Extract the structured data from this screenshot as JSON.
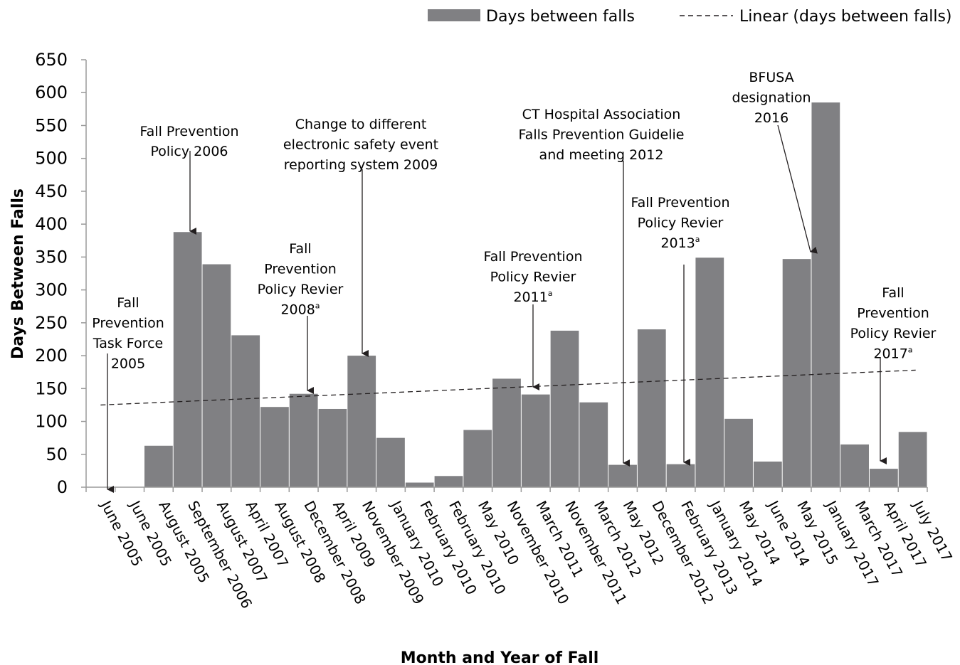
{
  "chart_data": {
    "type": "bar",
    "categories": [
      "June 2005",
      "June 2005",
      "August 2005",
      "September 2006",
      "August 2007",
      "April 2007",
      "August 2008",
      "December 2008",
      "April 2009",
      "November 2009",
      "January 2010",
      "February 2010",
      "February 2010",
      "May 2010",
      "November 2010",
      "March 2011",
      "November 2011",
      "March 2012",
      "May 2012",
      "December 2012",
      "February 2013",
      "January 2014",
      "May 2014",
      "June 2014",
      "May 2015",
      "January 2017",
      "March 2017",
      "April 2017",
      "July 2017"
    ],
    "series": [
      {
        "name": "Days between falls",
        "values": [
          0,
          0,
          63,
          388,
          339,
          231,
          122,
          142,
          119,
          200,
          75,
          7,
          17,
          87,
          165,
          141,
          238,
          129,
          34,
          240,
          35,
          349,
          104,
          39,
          347,
          585,
          65,
          28,
          84
        ]
      }
    ],
    "trendline": {
      "name": "Linear (days between falls)",
      "start": 125,
      "end": 178
    },
    "xlabel": "Month and Year of Fall",
    "ylabel": "Days Between Falls",
    "ylim": [
      0,
      650
    ],
    "yticks": [
      0,
      50,
      100,
      150,
      200,
      250,
      300,
      350,
      400,
      450,
      500,
      550,
      600,
      650
    ],
    "grid": false,
    "legend_position": "top-right",
    "bar_color": "#808083",
    "annotations": [
      {
        "lines": [
          "Fall",
          "Prevention",
          "Task Force",
          "",
          "2005"
        ],
        "sup": "",
        "target_index": 0,
        "target_value": 0
      },
      {
        "lines": [
          "Fall Prevention",
          "Policy 2006"
        ],
        "sup": "",
        "target_index": 3,
        "target_value": 388
      },
      {
        "lines": [
          "Fall",
          "Prevention",
          "Policy Revier",
          "2008"
        ],
        "sup": "a",
        "target_index": 7,
        "target_value": 142
      },
      {
        "lines": [
          "Change to different",
          "electronic safety event",
          "reporting system 2009"
        ],
        "sup": "",
        "target_index": 9,
        "target_value": 200
      },
      {
        "lines": [
          "Fall Prevention",
          "Policy Revier",
          "2011"
        ],
        "sup": "a",
        "target_index": 15,
        "target_value": 141
      },
      {
        "lines": [
          "CT Hospital Association",
          "Falls Prevention Guidelie",
          "and meeting 2012"
        ],
        "sup": "",
        "target_index": 18,
        "target_value": 34
      },
      {
        "lines": [
          "Fall Prevention",
          "Policy Revier",
          "2013"
        ],
        "sup": "a",
        "target_index": 20,
        "target_value": 35
      },
      {
        "lines": [
          "BFUSA",
          "designation",
          "2016"
        ],
        "sup": "",
        "target_index": 24,
        "target_value": 347
      },
      {
        "lines": [
          "Fall",
          "Prevention",
          "Policy Revier",
          "2017"
        ],
        "sup": "a",
        "target_index": 27,
        "target_value": 28
      }
    ]
  }
}
